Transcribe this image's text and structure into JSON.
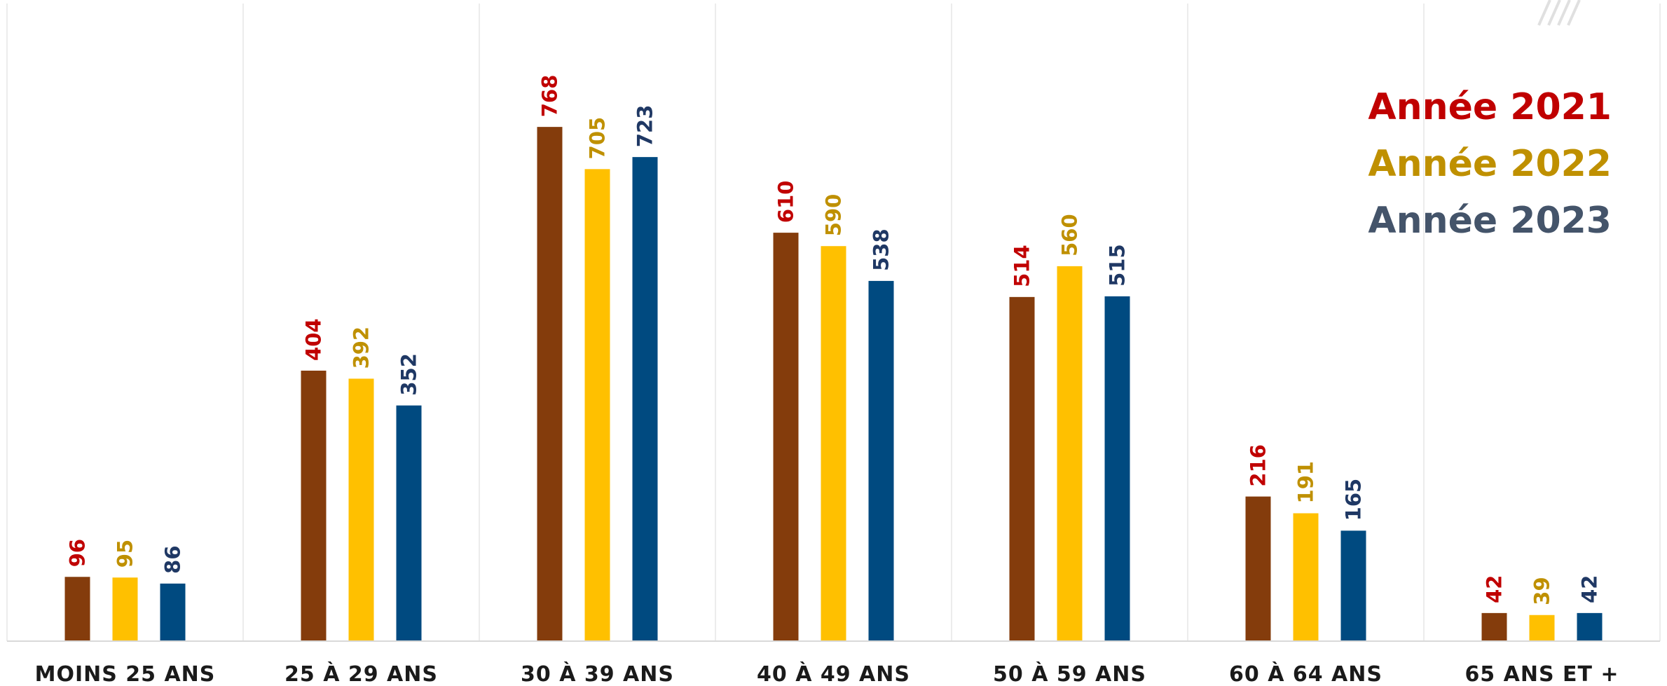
{
  "chart_data": {
    "type": "bar",
    "categories": [
      "MOINS 25 ANS",
      "25 À 29 ANS",
      "30 À 39 ANS",
      "40 À 49 ANS",
      "50 À 59 ANS",
      "60 À 64 ANS",
      "65 ANS ET +"
    ],
    "series": [
      {
        "name": "Année 2021",
        "values": [
          96,
          404,
          768,
          610,
          514,
          216,
          42
        ],
        "bar_color": "#843c0c",
        "label_color": "#c00000"
      },
      {
        "name": "Année 2022",
        "values": [
          95,
          392,
          705,
          590,
          560,
          191,
          39
        ],
        "bar_color": "#ffc000",
        "label_color": "#bf9000"
      },
      {
        "name": "Année 2023",
        "values": [
          86,
          352,
          723,
          538,
          515,
          165,
          42
        ],
        "bar_color": "#004a80",
        "label_color": "#1f3864"
      }
    ],
    "legend_colors": [
      "#c00000",
      "#bf9000",
      "#44546a"
    ],
    "title": "",
    "xlabel": "",
    "ylabel": "",
    "ylim": [
      0,
      900
    ],
    "grid": false,
    "legend_position": "top-right",
    "data_labels": true
  }
}
